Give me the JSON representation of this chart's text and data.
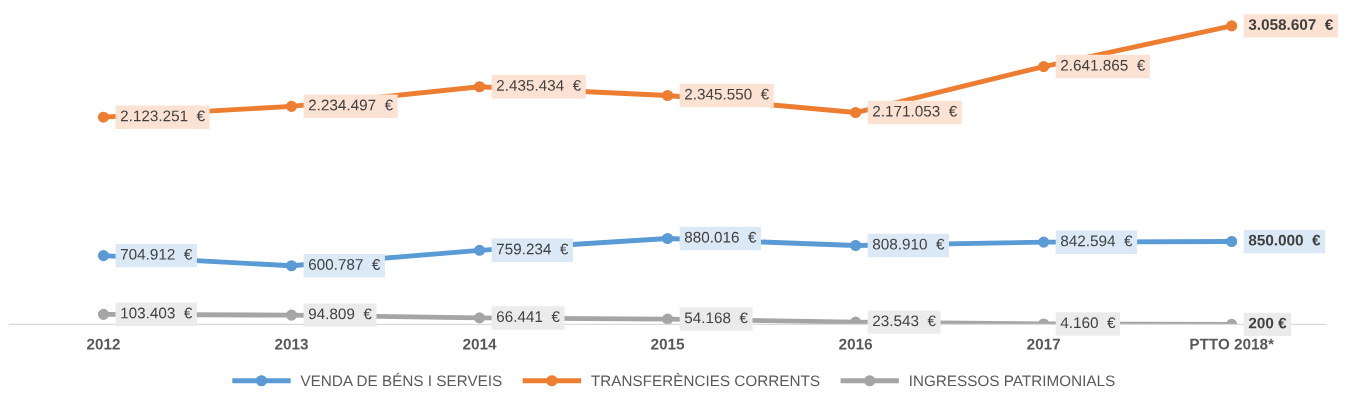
{
  "chart_data": {
    "type": "line",
    "categories": [
      "2012",
      "2013",
      "2014",
      "2015",
      "2016",
      "2017",
      "PTTO 2018*"
    ],
    "series": [
      {
        "name": "VENDA DE BÉNS I SERVEIS",
        "color": "#5b9bd5",
        "values": [
          704912,
          600787,
          759234,
          880016,
          808910,
          842594,
          850000
        ],
        "value_labels": [
          "704.912  €",
          "600.787  €",
          "759.234  €",
          "880.016  €",
          "808.910  €",
          "842.594  €",
          "850.000  €"
        ]
      },
      {
        "name": "TRANSFERÈNCIES CORRENTS",
        "color": "#ed7d31",
        "values": [
          2123251,
          2234497,
          2435434,
          2345550,
          2171053,
          2641865,
          3058607
        ],
        "value_labels": [
          "2.123.251  €",
          "2.234.497  €",
          "2.435.434  €",
          "2.345.550  €",
          "2.171.053  €",
          "2.641.865  €",
          "3.058.607  €"
        ]
      },
      {
        "name": "INGRESSOS PATRIMONIALS",
        "color": "#a5a5a5",
        "values": [
          103403,
          94809,
          66441,
          54168,
          23543,
          4160,
          200
        ],
        "value_labels": [
          "103.403  €",
          "94.809  €",
          "66.441  €",
          "54.168  €",
          "23.543  €",
          "4.160  €",
          "200 €"
        ]
      }
    ],
    "marker": "circle",
    "line_style": "solid",
    "legend": "bottom",
    "grid": false
  }
}
